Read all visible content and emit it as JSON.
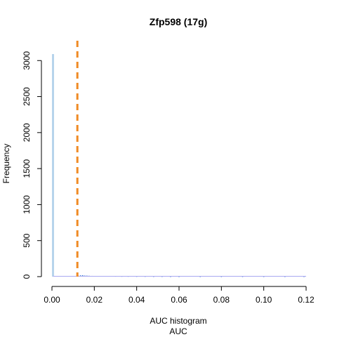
{
  "chart_data": {
    "type": "bar",
    "title": "Zfp598 (17g)",
    "xlabel": "AUC histogram",
    "xlabel2": "AUC",
    "ylabel": "Frequency",
    "xlim": [
      0,
      0.12
    ],
    "ylim": [
      0,
      3100
    ],
    "x_ticks": [
      "0.00",
      "0.02",
      "0.04",
      "0.06",
      "0.08",
      "0.10",
      "0.12"
    ],
    "x_tick_values": [
      0.0,
      0.02,
      0.04,
      0.06,
      0.08,
      0.1,
      0.12
    ],
    "y_ticks": [
      "0",
      "500",
      "1000",
      "1500",
      "2000",
      "2500",
      "3000"
    ],
    "y_tick_values": [
      0,
      500,
      1000,
      1500,
      2000,
      2500,
      3000
    ],
    "threshold": 0.012,
    "threshold_color": "#f08a24",
    "bar_colors": {
      "main": "#b7d4ec",
      "tail": "#3d7ad6",
      "baseline": "#a9a9f0"
    },
    "bins": [
      {
        "x": 0.0005,
        "count": 3090
      },
      {
        "x": 0.0125,
        "count": 12
      },
      {
        "x": 0.0135,
        "count": 18
      },
      {
        "x": 0.0145,
        "count": 20
      },
      {
        "x": 0.0155,
        "count": 15
      },
      {
        "x": 0.0165,
        "count": 14
      },
      {
        "x": 0.0175,
        "count": 12
      },
      {
        "x": 0.019,
        "count": 10
      },
      {
        "x": 0.021,
        "count": 9
      },
      {
        "x": 0.023,
        "count": 8
      },
      {
        "x": 0.025,
        "count": 7
      },
      {
        "x": 0.027,
        "count": 6
      },
      {
        "x": 0.03,
        "count": 5
      },
      {
        "x": 0.033,
        "count": 4
      },
      {
        "x": 0.036,
        "count": 4
      },
      {
        "x": 0.04,
        "count": 3
      },
      {
        "x": 0.044,
        "count": 3
      },
      {
        "x": 0.048,
        "count": 2
      },
      {
        "x": 0.052,
        "count": 2
      },
      {
        "x": 0.056,
        "count": 1
      },
      {
        "x": 0.06,
        "count": 1
      },
      {
        "x": 0.07,
        "count": 1
      },
      {
        "x": 0.08,
        "count": 1
      },
      {
        "x": 0.09,
        "count": 1
      },
      {
        "x": 0.1,
        "count": 1
      },
      {
        "x": 0.11,
        "count": 1
      },
      {
        "x": 0.119,
        "count": 1
      }
    ]
  }
}
